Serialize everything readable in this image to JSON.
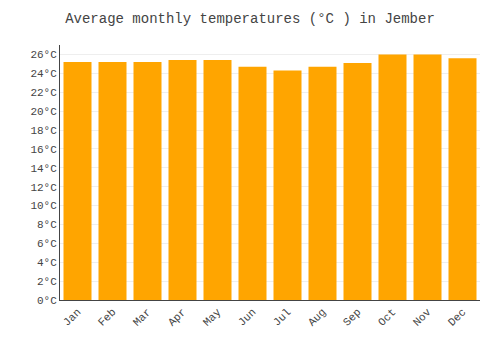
{
  "chart_data": {
    "type": "bar",
    "title": "Average monthly temperatures (°C ) in Jember",
    "categories": [
      "Jan",
      "Feb",
      "Mar",
      "Apr",
      "May",
      "Jun",
      "Jul",
      "Aug",
      "Sep",
      "Oct",
      "Nov",
      "Dec"
    ],
    "values": [
      25.2,
      25.2,
      25.2,
      25.4,
      25.4,
      24.7,
      24.3,
      24.7,
      25.1,
      26.0,
      26.0,
      25.6
    ],
    "color": "#FFA500",
    "ylim": [
      0,
      27
    ],
    "yticks": [
      {
        "value": 0,
        "label": "0°C"
      },
      {
        "value": 2,
        "label": "2°C"
      },
      {
        "value": 4,
        "label": "4°C"
      },
      {
        "value": 6,
        "label": "6°C"
      },
      {
        "value": 8,
        "label": "8°C"
      },
      {
        "value": 10,
        "label": "10°C"
      },
      {
        "value": 12,
        "label": "12°C"
      },
      {
        "value": 14,
        "label": "14°C"
      },
      {
        "value": 16,
        "label": "16°C"
      },
      {
        "value": 18,
        "label": "18°C"
      },
      {
        "value": 20,
        "label": "20°C"
      },
      {
        "value": 22,
        "label": "22°C"
      },
      {
        "value": 24,
        "label": "24°C"
      },
      {
        "value": 26,
        "label": "26°C"
      }
    ],
    "grid": true
  }
}
